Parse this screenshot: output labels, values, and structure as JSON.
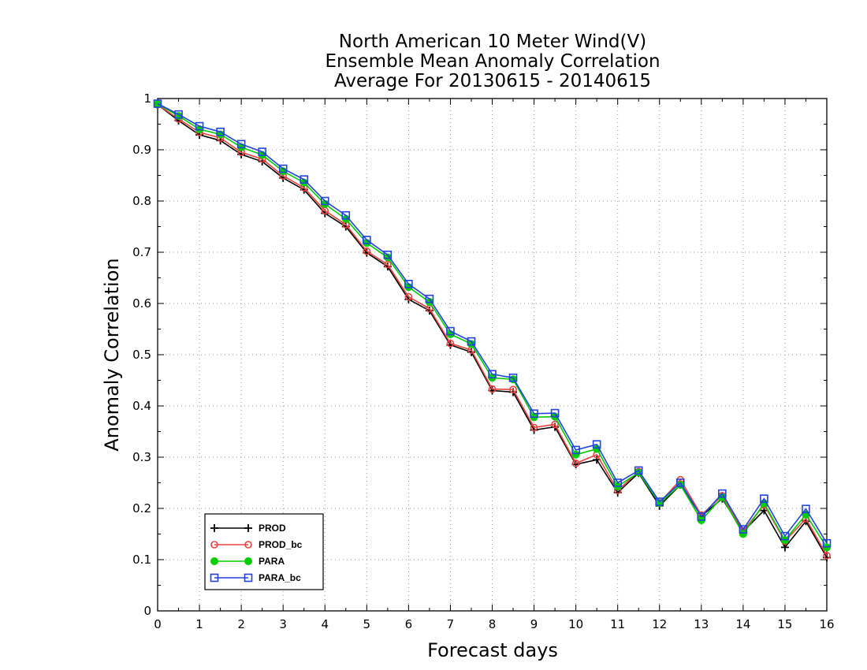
{
  "chart_data": {
    "type": "line",
    "title_lines": [
      "North American 10 Meter Wind(V)",
      "Ensemble Mean Anomaly Correlation",
      "Average For 20130615 - 20140615"
    ],
    "xlabel": "Forecast days",
    "ylabel": "Anomaly Correlation",
    "xlim": [
      0,
      16
    ],
    "ylim": [
      0,
      1
    ],
    "xticks": [
      0,
      1,
      2,
      3,
      4,
      5,
      6,
      7,
      8,
      9,
      10,
      11,
      12,
      13,
      14,
      15,
      16
    ],
    "yticks": [
      0,
      0.1,
      0.2,
      0.3,
      0.4,
      0.5,
      0.6,
      0.7,
      0.8,
      0.9,
      1
    ],
    "ytick_labels": [
      "0",
      "0.1",
      "0.2",
      "0.3",
      "0.4",
      "0.5",
      "0.6",
      "0.7",
      "0.8",
      "0.9",
      "1"
    ],
    "grid": true,
    "legend_position": "bottom-left",
    "x": [
      0,
      0.5,
      1,
      1.5,
      2,
      2.5,
      3,
      3.5,
      4,
      4.5,
      5,
      5.5,
      6,
      6.5,
      7,
      7.5,
      8,
      8.5,
      9,
      9.5,
      10,
      10.5,
      11,
      11.5,
      12,
      12.5,
      13,
      13.5,
      14,
      14.5,
      15,
      15.5,
      16
    ],
    "series": [
      {
        "name": "PROD",
        "color": "#000000",
        "marker": "plus",
        "values": [
          0.988,
          0.957,
          0.929,
          0.918,
          0.891,
          0.877,
          0.845,
          0.822,
          0.776,
          0.75,
          0.699,
          0.672,
          0.608,
          0.586,
          0.519,
          0.505,
          0.43,
          0.427,
          0.353,
          0.359,
          0.286,
          0.295,
          0.231,
          0.269,
          0.205,
          0.246,
          0.185,
          0.219,
          0.155,
          0.196,
          0.124,
          0.175,
          0.104
        ]
      },
      {
        "name": "PROD_bc",
        "color": "#e8433f",
        "marker": "open-circle",
        "values": [
          0.988,
          0.96,
          0.934,
          0.923,
          0.895,
          0.882,
          0.849,
          0.826,
          0.781,
          0.754,
          0.702,
          0.676,
          0.613,
          0.59,
          0.522,
          0.509,
          0.433,
          0.432,
          0.358,
          0.364,
          0.288,
          0.305,
          0.235,
          0.272,
          0.211,
          0.256,
          0.187,
          0.225,
          0.156,
          0.207,
          0.136,
          0.18,
          0.108
        ]
      },
      {
        "name": "PARA",
        "color": "#00cc00",
        "marker": "filled-circle",
        "values": [
          0.989,
          0.966,
          0.94,
          0.93,
          0.905,
          0.89,
          0.858,
          0.836,
          0.794,
          0.765,
          0.718,
          0.69,
          0.632,
          0.603,
          0.54,
          0.521,
          0.455,
          0.452,
          0.378,
          0.379,
          0.305,
          0.316,
          0.243,
          0.27,
          0.21,
          0.246,
          0.177,
          0.222,
          0.15,
          0.21,
          0.138,
          0.188,
          0.124
        ]
      },
      {
        "name": "PARA_bc",
        "color": "#2244dd",
        "marker": "open-square",
        "values": [
          0.99,
          0.969,
          0.946,
          0.935,
          0.911,
          0.896,
          0.863,
          0.842,
          0.8,
          0.772,
          0.724,
          0.695,
          0.638,
          0.609,
          0.546,
          0.526,
          0.462,
          0.455,
          0.385,
          0.386,
          0.314,
          0.325,
          0.25,
          0.274,
          0.213,
          0.25,
          0.184,
          0.229,
          0.159,
          0.219,
          0.146,
          0.199,
          0.132
        ]
      }
    ]
  }
}
